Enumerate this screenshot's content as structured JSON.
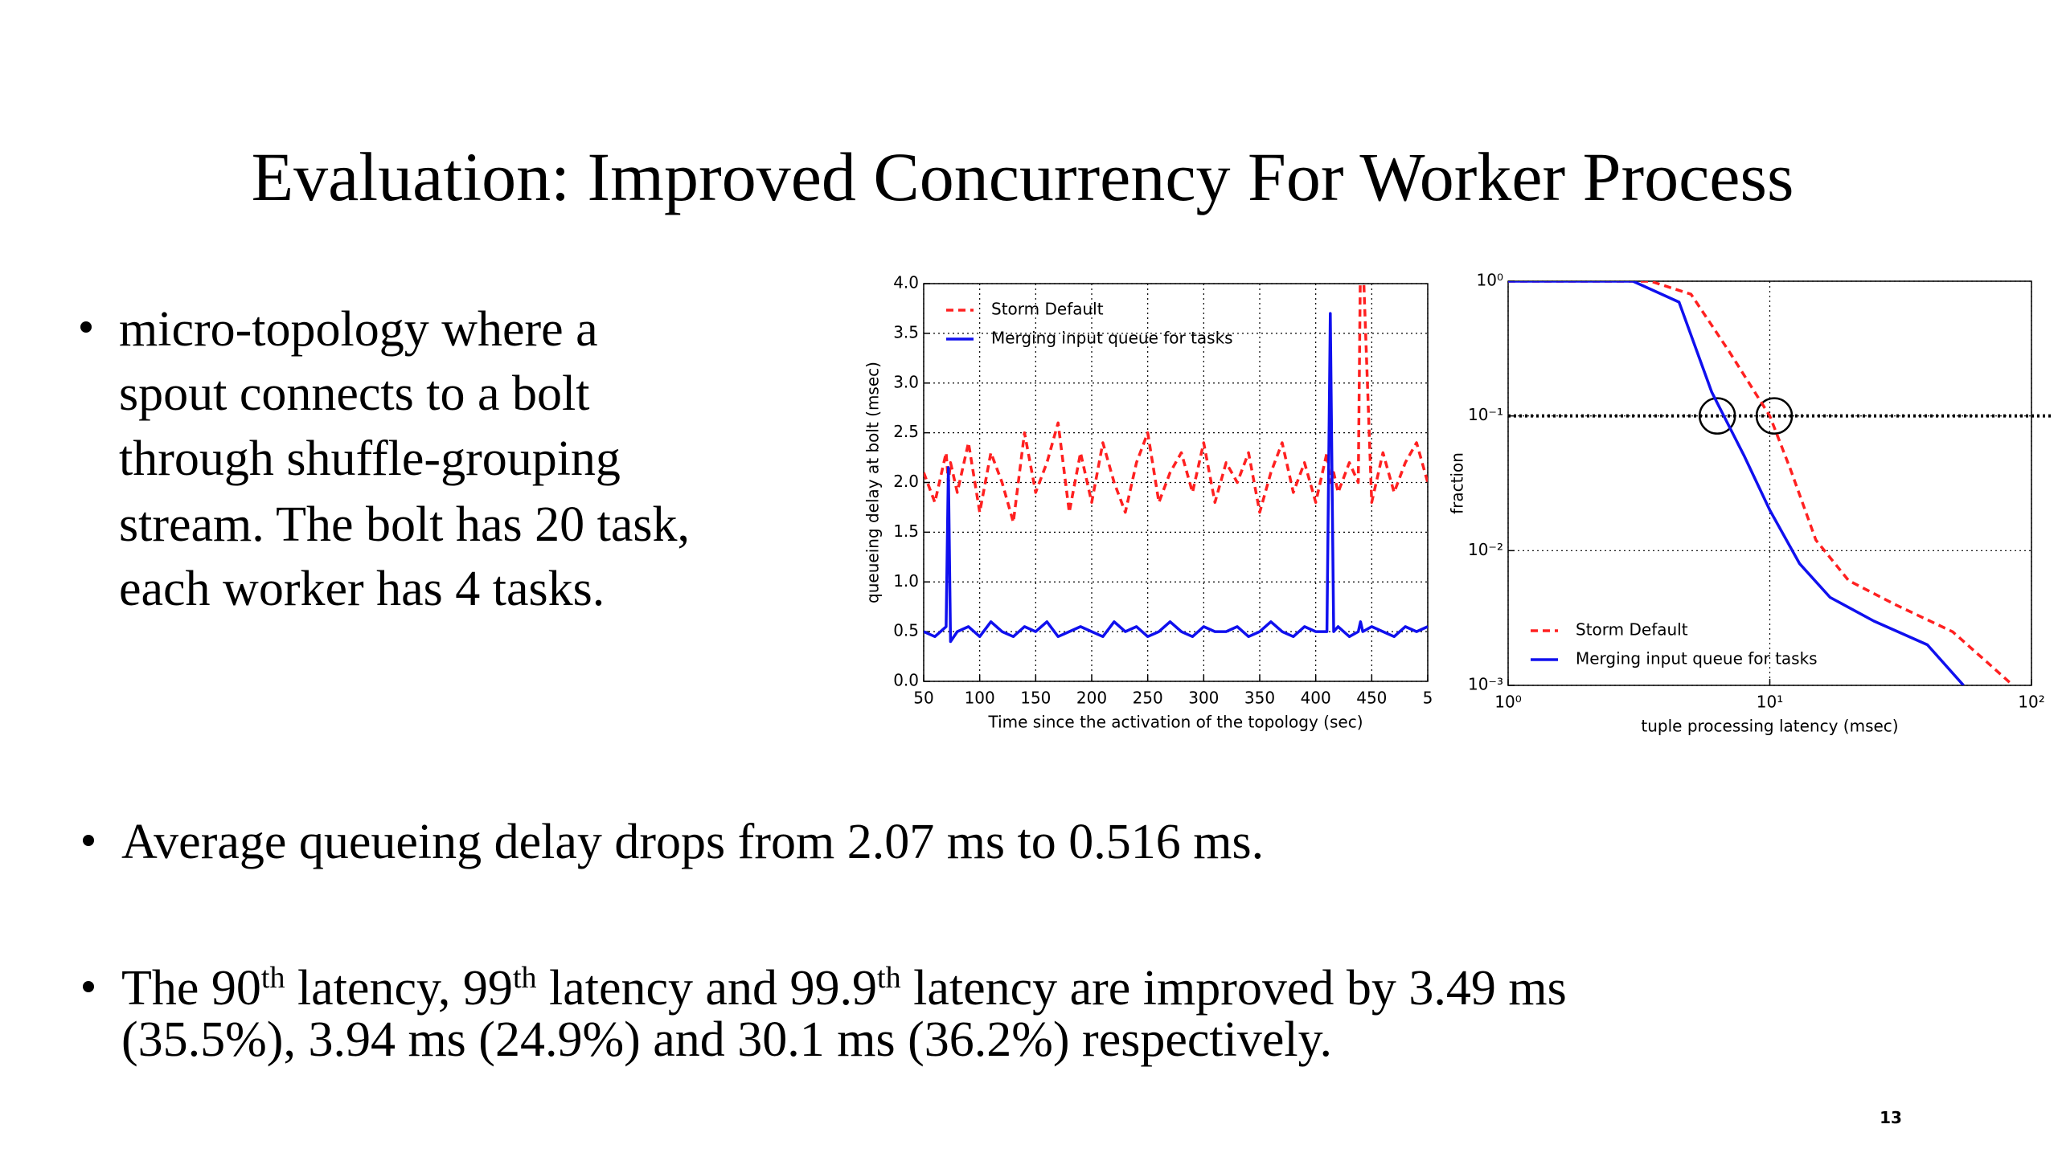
{
  "title": "Evaluation: Improved Concurrency For Worker Process",
  "bullets": [
    {
      "lines": [
        "micro-topology where a",
        "spout connects to a bolt",
        "through shuffle-grouping",
        "stream. The bolt has 20 task,",
        "each worker has 4 tasks."
      ]
    },
    {
      "lines": [
        "Average queueing delay drops from 2.07 ms to 0.516 ms."
      ]
    },
    {
      "runs": [
        "The 90",
        "th",
        "  latency, 99",
        "th",
        "  latency and 99.9",
        "th",
        " latency are improved by 3.49 ms"
      ],
      "line2": "(35.5%), 3.94 ms (24.9%) and 30.1 ms (36.2%) respectively."
    }
  ],
  "page_number": "13",
  "chart_data": [
    {
      "type": "line",
      "xlabel": "Time since the activation of the topology (sec)",
      "ylabel": "queueing delay at bolt (msec)",
      "x": [
        50,
        60,
        70,
        72,
        74,
        80,
        90,
        100,
        110,
        120,
        130,
        140,
        150,
        160,
        170,
        180,
        190,
        200,
        210,
        220,
        230,
        240,
        250,
        260,
        270,
        280,
        290,
        300,
        310,
        320,
        330,
        340,
        350,
        360,
        370,
        380,
        390,
        400,
        410,
        413,
        416,
        420,
        430,
        438,
        440,
        442,
        450,
        460,
        470,
        480,
        490,
        500
      ],
      "series": [
        {
          "name": "Storm Default",
          "color": "#ff2020",
          "dashed": true,
          "values": [
            2.1,
            1.8,
            2.3,
            2.0,
            2.2,
            1.9,
            2.4,
            1.7,
            2.3,
            2.0,
            1.6,
            2.5,
            1.9,
            2.2,
            2.6,
            1.7,
            2.3,
            1.8,
            2.4,
            2.0,
            1.7,
            2.2,
            2.5,
            1.8,
            2.1,
            2.3,
            1.9,
            2.4,
            1.8,
            2.2,
            2.0,
            2.3,
            1.7,
            2.1,
            2.4,
            1.9,
            2.2,
            1.8,
            2.3,
            2.0,
            2.1,
            1.9,
            2.2,
            2.0,
            4.3,
            4.3,
            1.8,
            2.3,
            1.9,
            2.2,
            2.4,
            2.0
          ]
        },
        {
          "name": "Merging input queue for tasks",
          "color": "#1010ee",
          "dashed": false,
          "values": [
            0.5,
            0.45,
            0.55,
            2.15,
            0.4,
            0.5,
            0.55,
            0.45,
            0.6,
            0.5,
            0.45,
            0.55,
            0.5,
            0.6,
            0.45,
            0.5,
            0.55,
            0.5,
            0.45,
            0.6,
            0.5,
            0.55,
            0.45,
            0.5,
            0.6,
            0.5,
            0.45,
            0.55,
            0.5,
            0.5,
            0.55,
            0.45,
            0.5,
            0.6,
            0.5,
            0.45,
            0.55,
            0.5,
            0.5,
            3.7,
            0.5,
            0.55,
            0.45,
            0.5,
            0.6,
            0.5,
            0.55,
            0.5,
            0.45,
            0.55,
            0.5,
            0.55
          ]
        }
      ],
      "xlim": [
        50,
        500
      ],
      "xticks": [
        50,
        100,
        150,
        200,
        250,
        300,
        350,
        400,
        450,
        {
          "value": 500,
          "label": "5"
        }
      ],
      "ylim": [
        0,
        4
      ],
      "yticks": [
        {
          "value": 0,
          "label": "0.0"
        },
        0.5,
        {
          "value": 1,
          "label": "1.0"
        },
        1.5,
        {
          "value": 2,
          "label": "2.0"
        },
        2.5,
        {
          "value": 3,
          "label": "3.0"
        },
        3.5,
        {
          "value": 4,
          "label": "4.0"
        }
      ],
      "grid": true,
      "legend": "upper-left"
    },
    {
      "type": "line",
      "xlabel": "tuple processing latency (msec)",
      "ylabel": "fraction",
      "series": [
        {
          "name": "Storm Default",
          "color": "#ff2020",
          "dashed": true,
          "x": [
            1,
            3.5,
            5,
            7,
            10,
            12,
            15,
            20,
            30,
            50,
            70,
            85
          ],
          "values": [
            1,
            1,
            0.8,
            0.3,
            0.1,
            0.04,
            0.012,
            0.006,
            0.004,
            0.0025,
            0.0014,
            0.001
          ]
        },
        {
          "name": "Merging input queue for tasks",
          "color": "#1010ee",
          "dashed": false,
          "x": [
            1,
            3,
            4.5,
            6,
            8,
            10,
            13,
            17,
            25,
            40,
            55
          ],
          "values": [
            1,
            1,
            0.7,
            0.15,
            0.05,
            0.02,
            0.008,
            0.0045,
            0.003,
            0.002,
            0.001
          ]
        }
      ],
      "xlim": [
        1,
        100
      ],
      "xticks": [
        {
          "value": 1,
          "label": "10⁰"
        },
        {
          "value": 10,
          "label": "10¹"
        },
        {
          "value": 100,
          "label": "10²"
        }
      ],
      "ylim": [
        0.001,
        1
      ],
      "yticks": [
        {
          "value": 0.001,
          "label": "10⁻³"
        },
        {
          "value": 0.01,
          "label": "10⁻²"
        },
        {
          "value": 0.1,
          "label": "10⁻¹"
        },
        {
          "value": 1,
          "label": "10⁰"
        }
      ],
      "xlog": true,
      "ylog": true,
      "grid": true,
      "legend": "lower-left",
      "reference_y": 0.1,
      "marker_x": [
        6.3,
        10.4
      ]
    }
  ]
}
